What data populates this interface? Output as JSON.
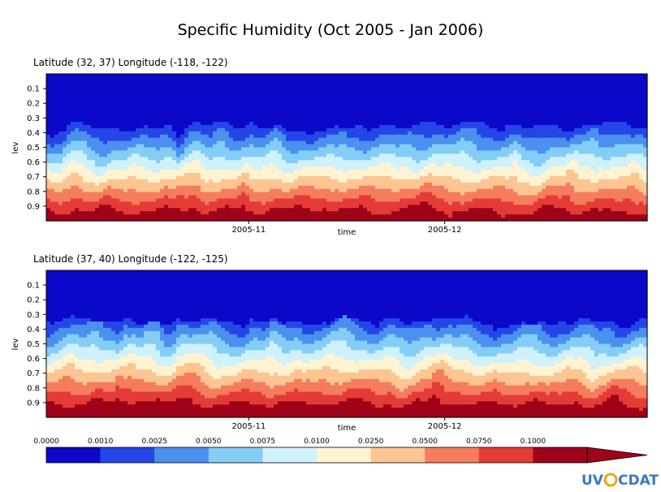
{
  "figure": {
    "title": "Specific Humidity (Oct 2005 - Jan 2006)",
    "logo": "UV-CDAT"
  },
  "chart_data": [
    {
      "type": "heatmap",
      "subtitle": "Latitude (32, 37) Longitude (-118, -122)",
      "xlabel": "time",
      "ylabel": "lev",
      "x_tick_labels": [
        "2005-11",
        "2005-12"
      ],
      "x_tick_dates": [
        "2005-11-01",
        "2005-12-01"
      ],
      "x_range": [
        "2005-10-01",
        "2006-01-01"
      ],
      "ylim": [
        0.0,
        1.0
      ],
      "y_ticks": [
        0.1,
        0.2,
        0.3,
        0.4,
        0.5,
        0.6,
        0.7,
        0.8,
        0.9
      ],
      "y_inverted": true,
      "note_structure": "dry upper levels (0.0-0.3); moist boundary layer near surface (0.8-1.0)"
    },
    {
      "type": "heatmap",
      "subtitle": "Latitude (37, 40) Longitude (-122, -125)",
      "xlabel": "time",
      "ylabel": "lev",
      "x_tick_labels": [
        "2005-11",
        "2005-12"
      ],
      "x_tick_dates": [
        "2005-11-01",
        "2005-12-01"
      ],
      "x_range": [
        "2005-10-01",
        "2006-01-01"
      ],
      "ylim": [
        0.0,
        1.0
      ],
      "y_ticks": [
        0.1,
        0.2,
        0.3,
        0.4,
        0.5,
        0.6,
        0.7,
        0.8,
        0.9
      ],
      "y_inverted": true
    }
  ],
  "colorbar": {
    "levels": [
      "0.0000",
      "0.0010",
      "0.0025",
      "0.0050",
      "0.0075",
      "0.0100",
      "0.0250",
      "0.0500",
      "0.0750",
      "0.1000"
    ],
    "colors": [
      "#0b08c9",
      "#2546e6",
      "#4a90ef",
      "#84cdf6",
      "#cff1fb",
      "#fff3d2",
      "#fcc592",
      "#f57d5e",
      "#e53b37",
      "#9e0319"
    ],
    "extend": "max"
  }
}
